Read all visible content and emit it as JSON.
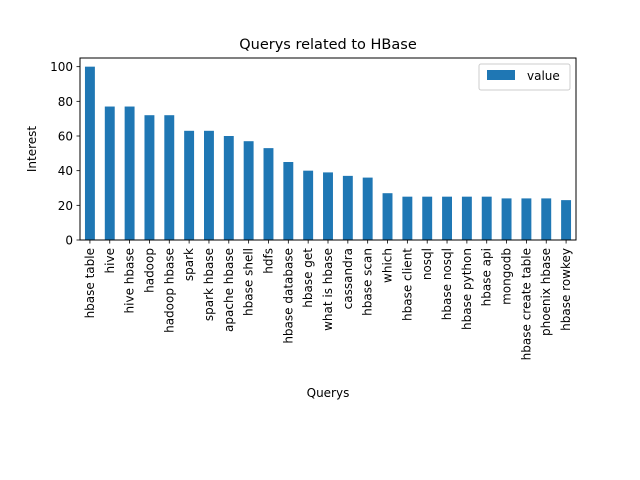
{
  "chart_data": {
    "type": "bar",
    "title": "Querys related to HBase",
    "xlabel": "Querys",
    "ylabel": "Interest",
    "ylim": [
      0,
      105
    ],
    "yticks": [
      0,
      20,
      40,
      60,
      80,
      100
    ],
    "grid": false,
    "legend_position": "top-right",
    "categories": [
      "hbase table",
      "hive",
      "hive hbase",
      "hadoop",
      "hadoop hbase",
      "spark",
      "spark hbase",
      "apache hbase",
      "hbase shell",
      "hdfs",
      "hbase database",
      "hbase get",
      "what is hbase",
      "cassandra",
      "hbase scan",
      "which",
      "hbase client",
      "nosql",
      "hbase nosql",
      "hbase python",
      "hbase api",
      "mongodb",
      "hbase create table",
      "phoenix hbase",
      "hbase rowkey"
    ],
    "series": [
      {
        "name": "value",
        "color": "#1f77b4",
        "values": [
          100,
          77,
          77,
          72,
          72,
          63,
          63,
          60,
          57,
          53,
          45,
          40,
          39,
          37,
          36,
          27,
          25,
          25,
          25,
          25,
          25,
          24,
          24,
          24,
          23
        ]
      }
    ]
  }
}
